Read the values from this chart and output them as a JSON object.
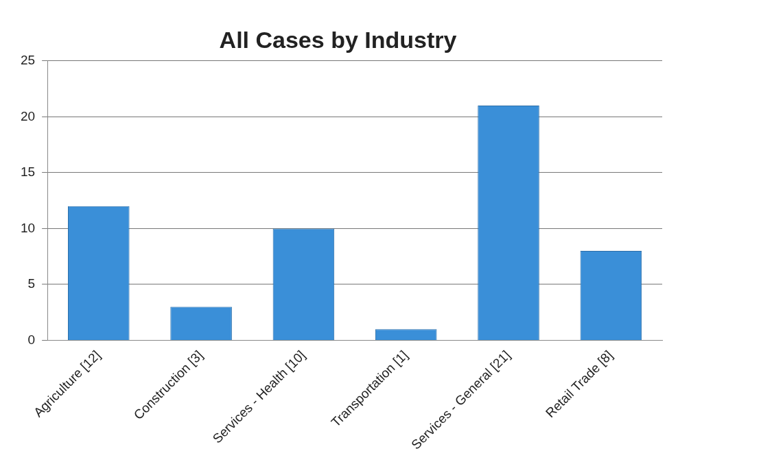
{
  "chart_data": {
    "type": "bar",
    "title": "All Cases by Industry",
    "categories": [
      "Agriculture [12]",
      "Construction [3]",
      "Services - Health [10]",
      "Transportation [1]",
      "Services - General [21]",
      "Retail Trade [8]"
    ],
    "values": [
      12,
      3,
      10,
      1,
      21,
      8
    ],
    "color": "#3a8fd8",
    "ylim": [
      0,
      25
    ],
    "yticks": [
      0,
      5,
      10,
      15,
      20,
      25
    ],
    "grid": "y",
    "legend": false
  }
}
